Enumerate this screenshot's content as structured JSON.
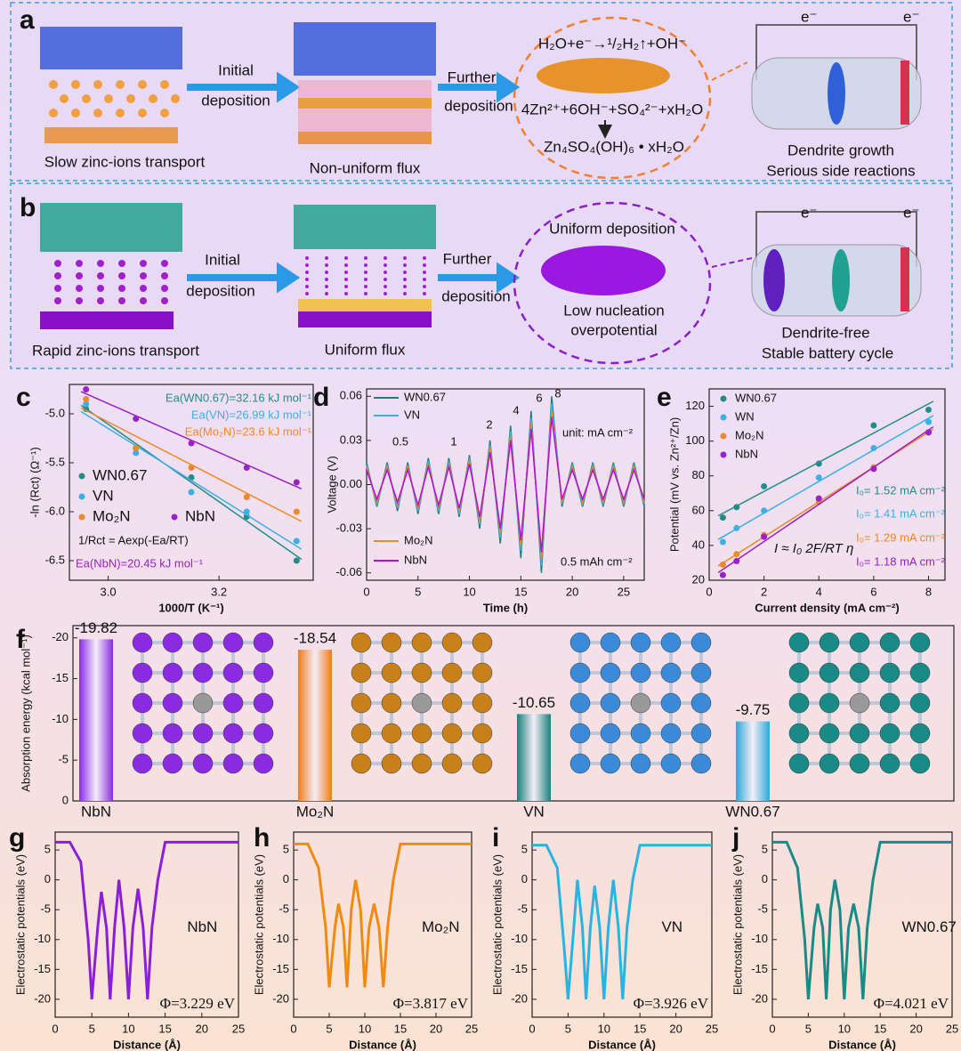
{
  "schematic": {
    "a": {
      "panel": "a",
      "left_label": "Slow zinc-ions transport",
      "arrow1": [
        "Initial",
        "deposition"
      ],
      "mid_label": "Non-uniform flux",
      "arrow2": [
        "Further",
        "deposition"
      ],
      "reactions": [
        "H₂O+e⁻→¹/₂H₂↑+OH⁻",
        "4Zn²⁺+6OH⁻+SO₄²⁻+xH₂O",
        "Zn₄SO₄(OH)₆ • xH₂O"
      ],
      "electron": "e⁻",
      "right_label": [
        "Dendrite growth",
        "Serious side reactions"
      ]
    },
    "b": {
      "panel": "b",
      "left_label": "Rapid zinc-ions transport",
      "arrow1": [
        "Initial",
        "deposition"
      ],
      "mid_label": "Uniform flux",
      "arrow2": [
        "Further",
        "deposition"
      ],
      "bubble": [
        "Uniform deposition",
        "Low nucleation",
        "overpotential"
      ],
      "electron": "e⁻",
      "right_label": [
        "Dendrite-free",
        "Stable battery cycle"
      ]
    }
  },
  "chart_data": [
    {
      "type": "scatter",
      "panel": "c",
      "xlabel": "1000/T (K⁻¹)",
      "ylabel": "-ln (Rct) (Ω⁻¹)",
      "xlim": [
        2.93,
        3.37
      ],
      "xticks": [
        {
          "value": 3,
          "label": "3.0"
        },
        {
          "value": 3.2,
          "label": "3.2"
        }
      ],
      "ylim": [
        -6.7,
        -4.7
      ],
      "yticks": [
        {
          "value": -5,
          "label": "-5.0"
        },
        {
          "value": -5.5,
          "label": "-5.5"
        },
        {
          "value": -6,
          "label": "-6.0"
        },
        {
          "value": -6.5,
          "label": "-6.5"
        }
      ],
      "x": [
        2.96,
        3.05,
        3.15,
        3.25,
        3.34
      ],
      "series": [
        {
          "name": "WN0.67",
          "color": "#248c86",
          "values": [
            -4.95,
            -5.35,
            -5.65,
            -6.05,
            -6.5
          ]
        },
        {
          "name": "VN",
          "color": "#3bb0e4",
          "values": [
            -4.9,
            -5.4,
            -5.8,
            -6.0,
            -6.3
          ]
        },
        {
          "name": "Mo₂N",
          "color": "#f0882a",
          "values": [
            -4.85,
            -5.35,
            -5.55,
            -5.85,
            -6.0
          ]
        },
        {
          "name": "NbN",
          "color": "#9a20c8",
          "values": [
            -4.75,
            -5.05,
            -5.3,
            -5.55,
            -5.7
          ]
        }
      ],
      "annotations": [
        {
          "text": "Ea(WN0.67)=32.16 kJ mol⁻¹",
          "color": "#248c86"
        },
        {
          "text": "Ea(VN)=26.99 kJ mol⁻¹",
          "color": "#3bb0e4"
        },
        {
          "text": "Ea(Mo₂N)=23.6 kJ mol⁻¹",
          "color": "#f0882a"
        },
        {
          "text": "1/Rct = Aexp(-Ea/RT)",
          "color": "#111"
        },
        {
          "text": "Ea(NbN)=20.45 kJ mol⁻¹",
          "color": "#9a20c8"
        }
      ]
    },
    {
      "type": "line",
      "panel": "d",
      "xlabel": "Time (h)",
      "ylabel": "Voltage (V)",
      "xlim": [
        0,
        27
      ],
      "xticks": [
        0,
        5,
        10,
        15,
        20,
        25
      ],
      "ylim": [
        -0.065,
        0.065
      ],
      "yticks": [
        -0.06,
        -0.03,
        {
          "value": 0,
          "label": "0.00"
        },
        0.03,
        0.06
      ],
      "x": [
        0,
        1,
        2,
        3,
        4,
        5,
        6,
        7,
        8,
        9,
        10,
        11,
        12,
        13,
        14,
        15,
        16,
        17,
        18,
        19,
        20,
        21,
        22,
        23,
        24,
        25,
        26,
        27
      ],
      "series": [
        {
          "name": "WN0.67",
          "color": "#1f7f7a",
          "values": [
            0.015,
            -0.015,
            0.015,
            -0.018,
            0.015,
            -0.02,
            0.018,
            -0.02,
            0.018,
            -0.022,
            0.02,
            -0.03,
            0.03,
            -0.04,
            0.04,
            -0.05,
            0.05,
            -0.06,
            0.06,
            -0.015,
            0.015,
            -0.015,
            0.015,
            -0.015,
            0.015,
            -0.015,
            0.015,
            -0.015
          ]
        },
        {
          "name": "VN",
          "color": "#3bb0e4",
          "values": [
            0.013,
            -0.013,
            0.013,
            -0.016,
            0.013,
            -0.018,
            0.016,
            -0.018,
            0.016,
            -0.02,
            0.018,
            -0.027,
            0.027,
            -0.036,
            0.036,
            -0.045,
            0.045,
            -0.055,
            0.055,
            -0.013,
            0.013,
            -0.013,
            0.013,
            -0.013,
            0.013,
            -0.013,
            0.013,
            -0.013
          ]
        },
        {
          "name": "Mo₂N",
          "color": "#f0882a",
          "values": [
            0.012,
            -0.012,
            0.012,
            -0.014,
            0.012,
            -0.016,
            0.014,
            -0.016,
            0.014,
            -0.018,
            0.016,
            -0.025,
            0.025,
            -0.033,
            0.033,
            -0.042,
            0.042,
            -0.05,
            0.05,
            -0.012,
            0.012,
            -0.012,
            0.012,
            -0.012,
            0.012,
            -0.012,
            0.012,
            -0.012
          ]
        },
        {
          "name": "NbN",
          "color": "#b010d0",
          "values": [
            0.01,
            -0.01,
            0.01,
            -0.012,
            0.01,
            -0.014,
            0.012,
            -0.014,
            0.012,
            -0.016,
            0.014,
            -0.022,
            0.022,
            -0.03,
            0.03,
            -0.038,
            0.038,
            -0.046,
            0.046,
            -0.01,
            0.01,
            -0.01,
            0.01,
            -0.01,
            0.01,
            -0.01,
            0.01,
            -0.01
          ]
        }
      ],
      "annotations": [
        {
          "text": "0.5"
        },
        {
          "text": "1"
        },
        {
          "text": "2"
        },
        {
          "text": "4"
        },
        {
          "text": "6"
        },
        {
          "text": "8"
        },
        {
          "text": "unit: mA cm⁻²"
        },
        {
          "text": "0.5 mAh cm⁻²"
        }
      ]
    },
    {
      "type": "scatter",
      "panel": "e",
      "xlabel": "Current density (mA cm⁻²)",
      "ylabel": "Potential (mV vs. Zn²⁺/Zn)",
      "xlim": [
        0,
        8.6
      ],
      "xticks": [
        0,
        2,
        4,
        6,
        8
      ],
      "ylim": [
        20,
        130
      ],
      "yticks": [
        20,
        40,
        60,
        80,
        100,
        120
      ],
      "x": [
        0.5,
        1,
        2,
        4,
        6,
        8
      ],
      "series": [
        {
          "name": "WN0.67",
          "color": "#248c86",
          "values": [
            56,
            62,
            74,
            87,
            109,
            118
          ]
        },
        {
          "name": "WN",
          "color": "#3bb0e4",
          "values": [
            42,
            50,
            60,
            79,
            96,
            111
          ]
        },
        {
          "name": "Mo₂N",
          "color": "#f0882a",
          "values": [
            29,
            35,
            46,
            65,
            85,
            105
          ]
        },
        {
          "name": "NbN",
          "color": "#9a20c8",
          "values": [
            23,
            31,
            45,
            67,
            84,
            105
          ]
        }
      ],
      "annotations": [
        {
          "text": "I₀= 1.52 mA cm⁻²",
          "color": "#248c86"
        },
        {
          "text": "I₀= 1.41 mA cm⁻²",
          "color": "#3bb0e4"
        },
        {
          "text": "I₀= 1.29 mA cm⁻²",
          "color": "#f0882a"
        },
        {
          "text": "I₀= 1.18 mA cm⁻²",
          "color": "#9a20c8"
        },
        {
          "text": "I ≈ I₀ 2F/RT η",
          "color": "#111"
        }
      ]
    },
    {
      "type": "bar",
      "panel": "f",
      "ylabel": "Absorption energy (kcal mol⁻¹)",
      "categories": [
        "NbN",
        "Mo₂N",
        "VN",
        "WN0.67"
      ],
      "values": [
        -19.82,
        -18.54,
        -10.65,
        -9.75
      ],
      "colors": [
        "#8a2be2",
        "#f07a1a",
        "#1a7f7a",
        "#2aa8d8"
      ],
      "lattice_colors": [
        "#8a2be2",
        "#c8801a",
        "#3a8ad8",
        "#1a8a86"
      ],
      "ylim": [
        0,
        -21.5
      ],
      "yticks": [
        -20,
        -15,
        -10,
        -5,
        0
      ]
    },
    {
      "type": "line",
      "panel": "g",
      "label": "NbN",
      "note": "Φ=3.229 eV",
      "xlabel": "Distance (Å)",
      "ylabel": "Electrostatic potentials (eV)",
      "xlim": [
        0,
        25
      ],
      "xticks": [
        0,
        5,
        10,
        15,
        20,
        25
      ],
      "ylim": [
        -23,
        8
      ],
      "yticks": [
        5,
        0,
        -5,
        -10,
        -15,
        -20
      ],
      "x": [
        0,
        2,
        3.5,
        4.5,
        5,
        5.8,
        6.3,
        7,
        7.5,
        8.1,
        8.7,
        9.4,
        10,
        10.6,
        11.3,
        12,
        12.6,
        13.2,
        14,
        15,
        17,
        25
      ],
      "series": [
        {
          "name": "NbN",
          "color": "#8a1fd8",
          "values": [
            6.3,
            6.3,
            3,
            -10,
            -20,
            -8,
            -2,
            -8,
            -20,
            -8,
            0,
            -8,
            -20,
            -8,
            -1.5,
            -8,
            -20,
            -8,
            0,
            6.3,
            6.3,
            6.3
          ]
        }
      ]
    },
    {
      "type": "line",
      "panel": "h",
      "label": "Mo₂N",
      "note": "Φ=3.817 eV",
      "xlabel": "Distance (Å)",
      "ylabel": "Electrostatic potentials (eV)",
      "xlim": [
        0,
        25
      ],
      "xticks": [
        0,
        5,
        10,
        15,
        20,
        25
      ],
      "ylim": [
        -23,
        8
      ],
      "yticks": [
        5,
        0,
        -5,
        -10,
        -15,
        -20
      ],
      "x": [
        0,
        2,
        3.5,
        4.5,
        5,
        5.8,
        6.3,
        7,
        7.5,
        8.1,
        8.7,
        9.4,
        10,
        10.6,
        11.3,
        12,
        12.6,
        13.2,
        14,
        15,
        17,
        25
      ],
      "series": [
        {
          "name": "Mo₂N",
          "color": "#f08a10",
          "values": [
            6,
            6,
            2,
            -8,
            -18,
            -8,
            -4,
            -8,
            -18,
            -5,
            0,
            -5,
            -18,
            -8,
            -4,
            -8,
            -18,
            -8,
            0,
            6,
            6,
            6
          ]
        }
      ]
    },
    {
      "type": "line",
      "panel": "i",
      "label": "VN",
      "note": "Φ=3.926 eV",
      "xlabel": "Distance (Å)",
      "ylabel": "Electrostatic potentials (eV)",
      "xlim": [
        0,
        25
      ],
      "xticks": [
        0,
        5,
        10,
        15,
        20,
        25
      ],
      "ylim": [
        -23,
        8
      ],
      "yticks": [
        5,
        0,
        -5,
        -10,
        -15,
        -20
      ],
      "x": [
        0,
        2,
        3.5,
        4.5,
        5,
        5.8,
        6.3,
        7,
        7.5,
        8.1,
        8.7,
        9.4,
        10,
        10.6,
        11.3,
        12,
        12.6,
        13.2,
        14,
        15,
        17,
        25
      ],
      "series": [
        {
          "name": "VN",
          "color": "#28b4e0",
          "values": [
            5.8,
            5.8,
            2,
            -12,
            -20,
            -8,
            0,
            -8,
            -20,
            -8,
            -1,
            -8,
            -20,
            -8,
            0,
            -8,
            -20,
            -8,
            0,
            5.8,
            5.8,
            5.8
          ]
        }
      ]
    },
    {
      "type": "line",
      "panel": "j",
      "label": "WN0.67",
      "note": "Φ=4.021 eV",
      "xlabel": "Distance (Å)",
      "ylabel": "Electrostatic potentials (eV)",
      "xlim": [
        0,
        25
      ],
      "xticks": [
        0,
        5,
        10,
        15,
        20,
        25
      ],
      "ylim": [
        -23,
        8
      ],
      "yticks": [
        5,
        0,
        -5,
        -10,
        -15,
        -20
      ],
      "x": [
        0,
        2,
        3.5,
        4.5,
        5,
        5.8,
        6.3,
        7,
        7.5,
        8.1,
        8.7,
        9.4,
        10,
        10.6,
        11.3,
        12,
        12.6,
        13.2,
        14,
        15,
        17,
        25
      ],
      "series": [
        {
          "name": "WN0.67",
          "color": "#1a8a86",
          "values": [
            6.3,
            6.3,
            2,
            -10,
            -20,
            -8,
            -4,
            -8,
            -20,
            -5,
            0,
            -5,
            -20,
            -8,
            -4,
            -8,
            -20,
            -8,
            0,
            6.3,
            6.3,
            6.3
          ]
        }
      ]
    }
  ]
}
